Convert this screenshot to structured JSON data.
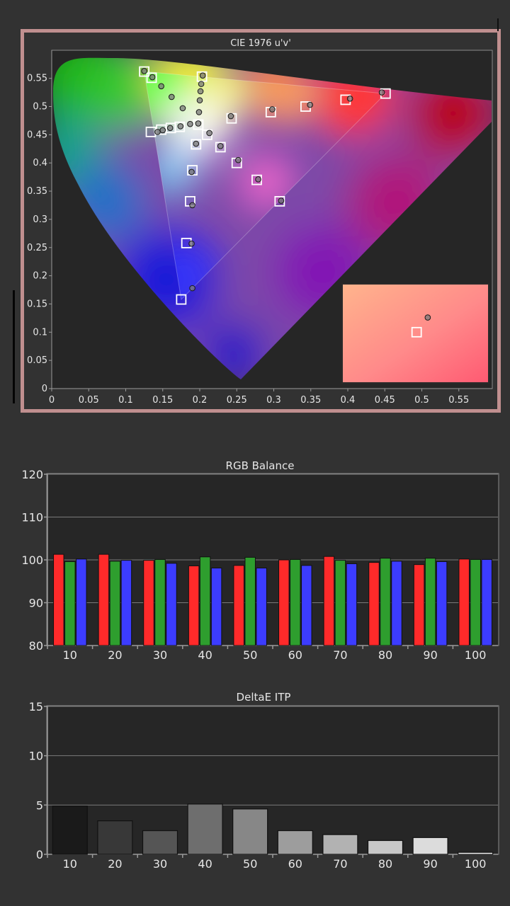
{
  "chart_data": [
    {
      "type": "scatter",
      "title": "CIE 1976 u'v'",
      "xlim": [
        0,
        0.6
      ],
      "ylim": [
        0,
        0.6
      ],
      "x_ticks": [
        "0",
        "0.05",
        "0.1",
        "0.15",
        "0.2",
        "0.25",
        "0.3",
        "0.35",
        "0.4",
        "0.45",
        "0.5",
        "0.55"
      ],
      "y_ticks": [
        "0",
        "0.05",
        "0.1",
        "0.15",
        "0.2",
        "0.25",
        "0.3",
        "0.35",
        "0.4",
        "0.45",
        "0.5",
        "0.55"
      ],
      "gamut_triangle": [
        [
          0.451,
          0.523
        ],
        [
          0.125,
          0.562
        ],
        [
          0.175,
          0.158
        ]
      ],
      "targets": [
        [
          0.125,
          0.562
        ],
        [
          0.135,
          0.551
        ],
        [
          0.198,
          0.468
        ],
        [
          0.134,
          0.455
        ],
        [
          0.148,
          0.459
        ],
        [
          0.161,
          0.462
        ],
        [
          0.173,
          0.464
        ],
        [
          0.203,
          0.553
        ],
        [
          0.243,
          0.479
        ],
        [
          0.296,
          0.49
        ],
        [
          0.343,
          0.5
        ],
        [
          0.397,
          0.512
        ],
        [
          0.451,
          0.523
        ],
        [
          0.21,
          0.45
        ],
        [
          0.228,
          0.428
        ],
        [
          0.25,
          0.4
        ],
        [
          0.277,
          0.37
        ],
        [
          0.308,
          0.332
        ],
        [
          0.195,
          0.433
        ],
        [
          0.19,
          0.387
        ],
        [
          0.187,
          0.332
        ],
        [
          0.182,
          0.258
        ],
        [
          0.175,
          0.158
        ]
      ],
      "measured": [
        [
          0.125,
          0.563
        ],
        [
          0.136,
          0.552
        ],
        [
          0.148,
          0.536
        ],
        [
          0.162,
          0.517
        ],
        [
          0.177,
          0.497
        ],
        [
          0.204,
          0.555
        ],
        [
          0.202,
          0.54
        ],
        [
          0.201,
          0.527
        ],
        [
          0.2,
          0.511
        ],
        [
          0.199,
          0.49
        ],
        [
          0.198,
          0.47
        ],
        [
          0.187,
          0.469
        ],
        [
          0.174,
          0.465
        ],
        [
          0.16,
          0.462
        ],
        [
          0.15,
          0.458
        ],
        [
          0.143,
          0.455
        ],
        [
          0.242,
          0.483
        ],
        [
          0.298,
          0.495
        ],
        [
          0.349,
          0.503
        ],
        [
          0.403,
          0.514
        ],
        [
          0.446,
          0.525
        ],
        [
          0.213,
          0.453
        ],
        [
          0.228,
          0.43
        ],
        [
          0.252,
          0.405
        ],
        [
          0.279,
          0.371
        ],
        [
          0.31,
          0.333
        ],
        [
          0.195,
          0.434
        ],
        [
          0.189,
          0.384
        ],
        [
          0.19,
          0.325
        ],
        [
          0.189,
          0.257
        ],
        [
          0.19,
          0.178
        ]
      ],
      "inset": {
        "target": [
          0.493,
          0.1
        ],
        "measured": [
          0.508,
          0.126
        ]
      }
    },
    {
      "type": "bar",
      "title": "RGB Balance",
      "categories": [
        "10",
        "20",
        "30",
        "40",
        "50",
        "60",
        "70",
        "80",
        "90",
        "100"
      ],
      "ylim": [
        80,
        120
      ],
      "y_ticks": [
        "80",
        "90",
        "100",
        "110",
        "120"
      ],
      "series": [
        {
          "color": "#ff2a2a",
          "values": [
            101.3,
            101.3,
            99.9,
            98.6,
            98.7,
            100.0,
            100.8,
            99.4,
            98.9,
            100.2
          ]
        },
        {
          "color": "#2e9e2e",
          "values": [
            99.6,
            99.7,
            100.1,
            100.7,
            100.6,
            100.1,
            99.9,
            100.4,
            100.4,
            100.1
          ]
        },
        {
          "color": "#3c3cff",
          "values": [
            100.2,
            99.9,
            99.2,
            98.1,
            98.1,
            98.7,
            99.1,
            99.7,
            99.6,
            100.1
          ]
        }
      ]
    },
    {
      "type": "bar",
      "title": "DeltaE ITP",
      "categories": [
        "10",
        "20",
        "30",
        "40",
        "50",
        "60",
        "70",
        "80",
        "90",
        "100"
      ],
      "ylim": [
        0,
        15
      ],
      "y_ticks": [
        "0",
        "5",
        "10",
        "15"
      ],
      "values": [
        4.9,
        3.4,
        2.4,
        5.1,
        4.6,
        2.4,
        2.0,
        1.4,
        1.7,
        0.2
      ],
      "colors": [
        "#1a1a1a",
        "#383838",
        "#555555",
        "#6e6e6e",
        "#878787",
        "#9d9d9d",
        "#b2b2b2",
        "#c8c8c8",
        "#dcdcdc",
        "#f0f0f0"
      ]
    }
  ]
}
